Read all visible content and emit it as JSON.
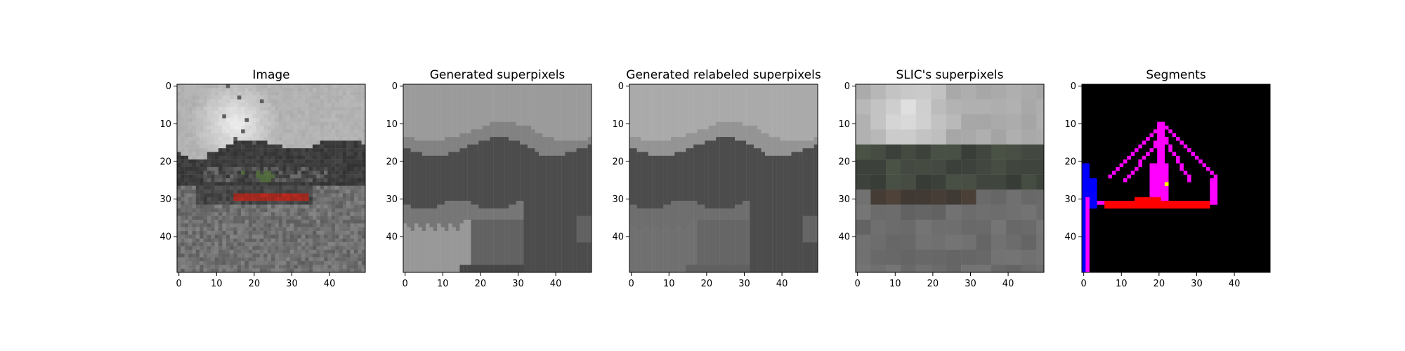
{
  "chart_data": [
    {
      "type": "heatmap",
      "title": "Image",
      "xlim": [
        0,
        50
      ],
      "ylim": [
        50,
        0
      ],
      "xticks": [
        0,
        10,
        20,
        30,
        40
      ],
      "yticks": [
        0,
        10,
        20,
        30,
        40
      ],
      "content": "photo of a harbor: grey sky, dark hills, a boat with a red hull, grey water"
    },
    {
      "type": "heatmap",
      "title": "Generated superpixels",
      "xlim": [
        0,
        50
      ],
      "ylim": [
        50,
        0
      ],
      "xticks": [
        0,
        10,
        20,
        30,
        40
      ],
      "yticks": [
        0,
        10,
        20,
        30,
        40
      ],
      "content": "grey-level superpixel segmentation"
    },
    {
      "type": "heatmap",
      "title": "Generated relabeled superpixels",
      "xlim": [
        0,
        50
      ],
      "ylim": [
        50,
        0
      ],
      "xticks": [
        0,
        10,
        20,
        30,
        40
      ],
      "yticks": [
        0,
        10,
        20,
        30,
        40
      ],
      "content": "grey-level superpixel segmentation after relabeling"
    },
    {
      "type": "heatmap",
      "title": "SLIC's superpixels",
      "xlim": [
        0,
        50
      ],
      "ylim": [
        50,
        0
      ],
      "xticks": [
        0,
        10,
        20,
        30,
        40
      ],
      "yticks": [
        0,
        10,
        20,
        30,
        40
      ],
      "content": "SLIC superpixels colored by mean region color"
    },
    {
      "type": "heatmap",
      "title": "Segments",
      "xlim": [
        0,
        50
      ],
      "ylim": [
        50,
        0
      ],
      "xticks": [
        0,
        10,
        20,
        30,
        40
      ],
      "yticks": [
        0,
        10,
        20,
        30,
        40
      ],
      "content": "segment mask on black background: magenta mast and rigging, red hull line, blue segment at left edge",
      "colors": {
        "background": "#000000",
        "rigging": "#ff00ff",
        "hull": "#ff0000",
        "edge": "#0000ff",
        "highlight": "#ffff00"
      }
    }
  ]
}
